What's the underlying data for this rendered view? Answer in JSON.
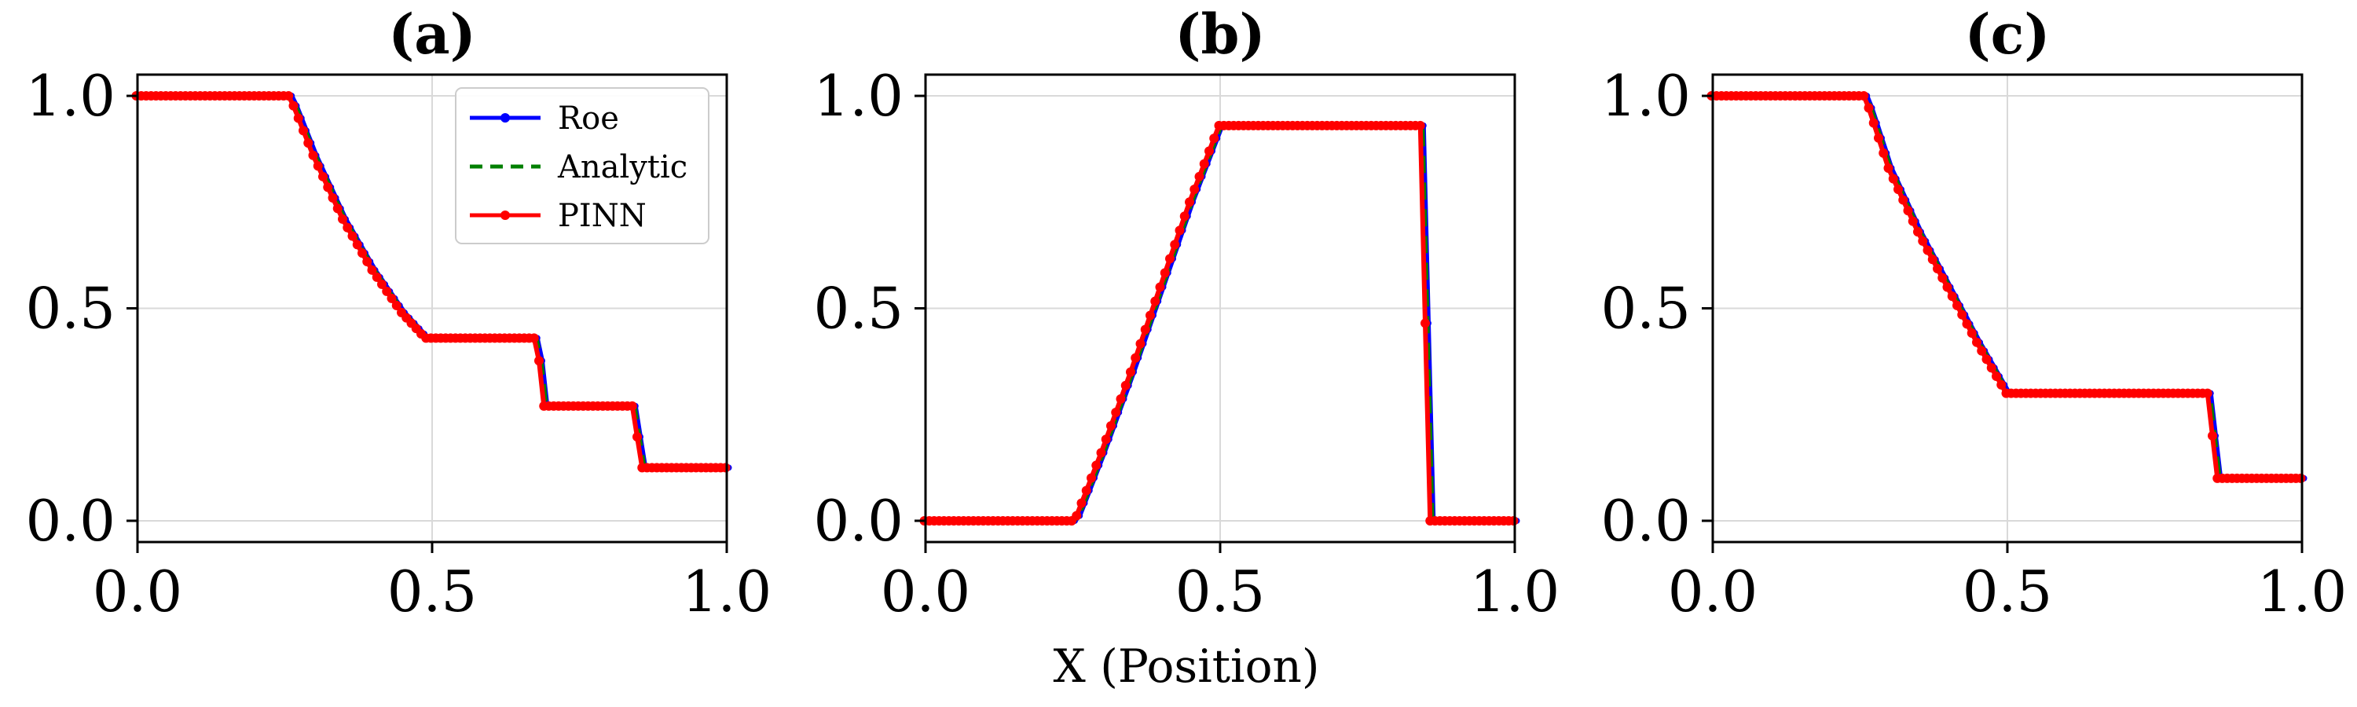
{
  "colors": {
    "roe": "#0000ff",
    "analytic": "#008000",
    "pinn": "#ff0000",
    "grid": "#d9d9d9"
  },
  "chart_data": [
    {
      "type": "line",
      "title": "(a)",
      "xlabel": "",
      "ylabel": "",
      "xlim": [
        -0.0,
        1.0
      ],
      "ylim": [
        -0.05,
        1.05
      ],
      "xticks": [
        "0.0",
        "0.5",
        "1.0"
      ],
      "yticks": [
        "0.0",
        "0.5",
        "1.0"
      ],
      "legend": {
        "placement": "top-right",
        "entries": [
          "Roe",
          "Analytic",
          "PINN"
        ]
      },
      "profile": [
        [
          0,
          1.0
        ],
        [
          0.26,
          1.0
        ],
        [
          0.3,
          0.86
        ],
        [
          0.35,
          0.71
        ],
        [
          0.4,
          0.59
        ],
        [
          0.45,
          0.49
        ],
        [
          0.49,
          0.43
        ],
        [
          0.68,
          0.43
        ],
        [
          0.69,
          0.27
        ],
        [
          0.845,
          0.27
        ],
        [
          0.855,
          0.125
        ],
        [
          1.0,
          0.125
        ]
      ],
      "series": [
        {
          "name": "Roe",
          "style": "solid-marker"
        },
        {
          "name": "Analytic",
          "style": "dashed"
        },
        {
          "name": "PINN",
          "style": "solid-marker"
        }
      ]
    },
    {
      "type": "line",
      "title": "(b)",
      "xlabel": "X (Position)",
      "ylabel": "",
      "xlim": [
        0.0,
        1.0
      ],
      "ylim": [
        -0.05,
        1.05
      ],
      "xticks": [
        "0.0",
        "0.5",
        "1.0"
      ],
      "yticks": [
        "0.0",
        "0.5",
        "1.0"
      ],
      "profile": [
        [
          0,
          0.0
        ],
        [
          0.255,
          0.0
        ],
        [
          0.3,
          0.16
        ],
        [
          0.35,
          0.35
        ],
        [
          0.4,
          0.55
        ],
        [
          0.45,
          0.75
        ],
        [
          0.5,
          0.93
        ],
        [
          0.845,
          0.93
        ],
        [
          0.855,
          0.0
        ],
        [
          1.0,
          0.0
        ]
      ],
      "series": [
        {
          "name": "Roe",
          "style": "solid-marker"
        },
        {
          "name": "Analytic",
          "style": "dashed"
        },
        {
          "name": "PINN",
          "style": "solid-marker"
        }
      ]
    },
    {
      "type": "line",
      "title": "(c)",
      "xlabel": "",
      "ylabel": "",
      "xlim": [
        0.0,
        1.0
      ],
      "ylim": [
        -0.05,
        1.05
      ],
      "xticks": [
        "0.0",
        "0.5",
        "1.0"
      ],
      "yticks": [
        "0.0",
        "0.5",
        "1.0"
      ],
      "profile": [
        [
          0,
          1.0
        ],
        [
          0.26,
          1.0
        ],
        [
          0.3,
          0.83
        ],
        [
          0.35,
          0.68
        ],
        [
          0.4,
          0.55
        ],
        [
          0.45,
          0.42
        ],
        [
          0.5,
          0.3
        ],
        [
          0.845,
          0.3
        ],
        [
          0.855,
          0.1
        ],
        [
          1.0,
          0.1
        ]
      ],
      "series": [
        {
          "name": "Roe",
          "style": "solid-marker"
        },
        {
          "name": "Analytic",
          "style": "dashed"
        },
        {
          "name": "PINN",
          "style": "solid-marker"
        }
      ]
    }
  ]
}
